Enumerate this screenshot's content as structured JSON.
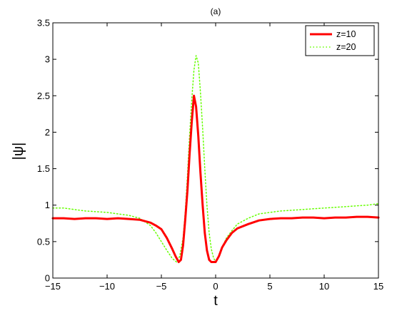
{
  "chart_data": {
    "type": "line",
    "title": "(a)",
    "xlabel": "t",
    "ylabel": "|ψ|",
    "xlim": [
      -15,
      15
    ],
    "ylim": [
      0,
      3.5
    ],
    "xticks": [
      -15,
      -10,
      -5,
      0,
      5,
      10,
      15
    ],
    "yticks": [
      0,
      0.5,
      1,
      1.5,
      2,
      2.5,
      3,
      3.5
    ],
    "xtick_labels": [
      "−15",
      "−10",
      "−5",
      "0",
      "5",
      "10",
      "15"
    ],
    "ytick_labels": [
      "0",
      "0.5",
      "1",
      "1.5",
      "2",
      "2.5",
      "3",
      "3.5"
    ],
    "grid": false,
    "legend_position": "top-right",
    "series": [
      {
        "name": "z=10",
        "color": "#ff0000",
        "style": "solid",
        "x": [
          -15,
          -14,
          -13,
          -12,
          -11,
          -10,
          -9,
          -8,
          -7,
          -6,
          -5.5,
          -5,
          -4.5,
          -4,
          -3.7,
          -3.4,
          -3.2,
          -3,
          -2.8,
          -2.6,
          -2.4,
          -2.2,
          -2,
          -1.8,
          -1.6,
          -1.4,
          -1.2,
          -1,
          -0.8,
          -0.6,
          -0.4,
          -0.2,
          0,
          0.3,
          0.6,
          1,
          1.5,
          2,
          3,
          4,
          5,
          6,
          7,
          8,
          9,
          10,
          11,
          12,
          13,
          14,
          15
        ],
        "y": [
          0.82,
          0.82,
          0.81,
          0.82,
          0.82,
          0.81,
          0.82,
          0.81,
          0.8,
          0.76,
          0.72,
          0.67,
          0.55,
          0.4,
          0.3,
          0.22,
          0.25,
          0.45,
          0.8,
          1.2,
          1.7,
          2.15,
          2.5,
          2.35,
          1.95,
          1.45,
          1.0,
          0.62,
          0.38,
          0.25,
          0.22,
          0.22,
          0.22,
          0.3,
          0.42,
          0.52,
          0.62,
          0.68,
          0.74,
          0.79,
          0.81,
          0.82,
          0.82,
          0.83,
          0.83,
          0.82,
          0.83,
          0.83,
          0.84,
          0.84,
          0.83
        ]
      },
      {
        "name": "z=20",
        "color": "#66ff00",
        "style": "dotted",
        "x": [
          -15,
          -14,
          -13,
          -12,
          -11,
          -10,
          -9,
          -8,
          -7,
          -6,
          -5.5,
          -5,
          -4.5,
          -4,
          -3.6,
          -3.3,
          -3,
          -2.8,
          -2.6,
          -2.4,
          -2.2,
          -2,
          -1.8,
          -1.6,
          -1.4,
          -1.2,
          -1,
          -0.8,
          -0.6,
          -0.4,
          -0.2,
          0,
          0.3,
          0.6,
          1,
          1.5,
          2,
          3,
          4,
          5,
          6,
          7,
          8,
          9,
          10,
          11,
          12,
          13,
          14,
          15
        ],
        "y": [
          0.96,
          0.96,
          0.94,
          0.92,
          0.91,
          0.9,
          0.88,
          0.86,
          0.82,
          0.72,
          0.62,
          0.5,
          0.38,
          0.27,
          0.22,
          0.3,
          0.55,
          0.9,
          1.4,
          1.95,
          2.45,
          2.85,
          3.05,
          2.95,
          2.55,
          2.05,
          1.5,
          1.0,
          0.62,
          0.4,
          0.28,
          0.22,
          0.3,
          0.42,
          0.55,
          0.65,
          0.74,
          0.82,
          0.88,
          0.9,
          0.92,
          0.93,
          0.94,
          0.95,
          0.96,
          0.97,
          0.98,
          0.99,
          1.0,
          1.02
        ]
      }
    ]
  }
}
